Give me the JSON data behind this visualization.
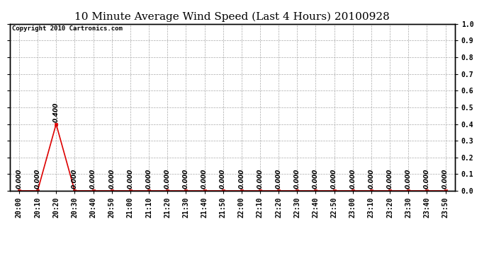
{
  "title": "10 Minute Average Wind Speed (Last 4 Hours) 20100928",
  "copyright_text": "Copyright 2010 Cartronics.com",
  "x_labels": [
    "20:00",
    "20:10",
    "20:20",
    "20:30",
    "20:40",
    "20:50",
    "21:00",
    "21:10",
    "21:20",
    "21:30",
    "21:40",
    "21:50",
    "22:00",
    "22:10",
    "22:20",
    "22:30",
    "22:40",
    "22:50",
    "23:00",
    "23:10",
    "23:20",
    "23:30",
    "23:40",
    "23:50"
  ],
  "y_values": [
    0.0,
    0.0,
    0.4,
    0.0,
    0.0,
    0.0,
    0.0,
    0.0,
    0.0,
    0.0,
    0.0,
    0.0,
    0.0,
    0.0,
    0.0,
    0.0,
    0.0,
    0.0,
    0.0,
    0.0,
    0.0,
    0.0,
    0.0,
    0.0
  ],
  "ylim": [
    0.0,
    1.0
  ],
  "yticks": [
    0.0,
    0.1,
    0.2,
    0.3,
    0.4,
    0.5,
    0.6,
    0.7,
    0.8,
    0.9,
    1.0
  ],
  "line_color": "#dd0000",
  "background_color": "#ffffff",
  "plot_bg_color": "#ffffff",
  "grid_color": "#aaaaaa",
  "title_fontsize": 11,
  "tick_fontsize": 7,
  "annot_fontsize": 6.5
}
